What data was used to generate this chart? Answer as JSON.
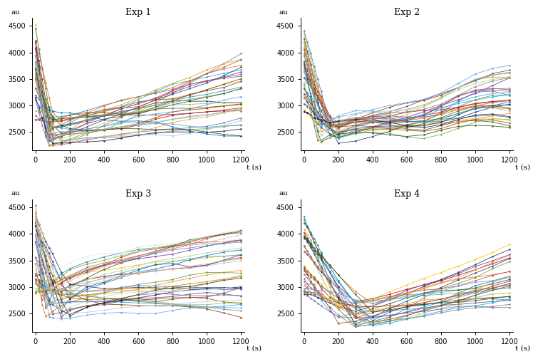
{
  "titles": [
    "Exp 1",
    "Exp 2",
    "Exp 3",
    "Exp 4"
  ],
  "ylabel": "au",
  "xlabel": "t (s)",
  "xlim": [
    -20,
    1220
  ],
  "ylim": [
    2150,
    4650
  ],
  "yticks": [
    2500,
    3000,
    3500,
    4000,
    4500
  ],
  "xticks": [
    0,
    200,
    400,
    600,
    800,
    1000,
    1200
  ],
  "background": "#ffffff",
  "n_cells": [
    32,
    32,
    38,
    28
  ],
  "time_points": [
    0,
    20,
    40,
    60,
    80,
    100,
    150,
    200,
    300,
    400,
    500,
    600,
    700,
    800,
    900,
    1000,
    1100,
    1200
  ],
  "colors": [
    "#4472c4",
    "#70ad47",
    "#c00000",
    "#7030a0",
    "#00b0f0",
    "#ffc000",
    "#375623",
    "#843c0c",
    "#17375e",
    "#e36c09",
    "#604a7b",
    "#31849b",
    "#76923c",
    "#953734",
    "#558ed5",
    "#9bbb59",
    "#0070c0",
    "#7f7f7f",
    "#d4a017",
    "#c0504d",
    "#8064a2",
    "#4bacc6",
    "#f79646",
    "#1f497d",
    "#984807",
    "#6d9eeb",
    "#cc4125",
    "#274e13",
    "#7f6000",
    "#20124d",
    "#92cddc",
    "#a9d18e",
    "#b7dee8",
    "#e6b8a2",
    "#fac090",
    "#d8e4bc",
    "#b8cce4",
    "#daeef3",
    "#e2efda",
    "#ff0000"
  ]
}
